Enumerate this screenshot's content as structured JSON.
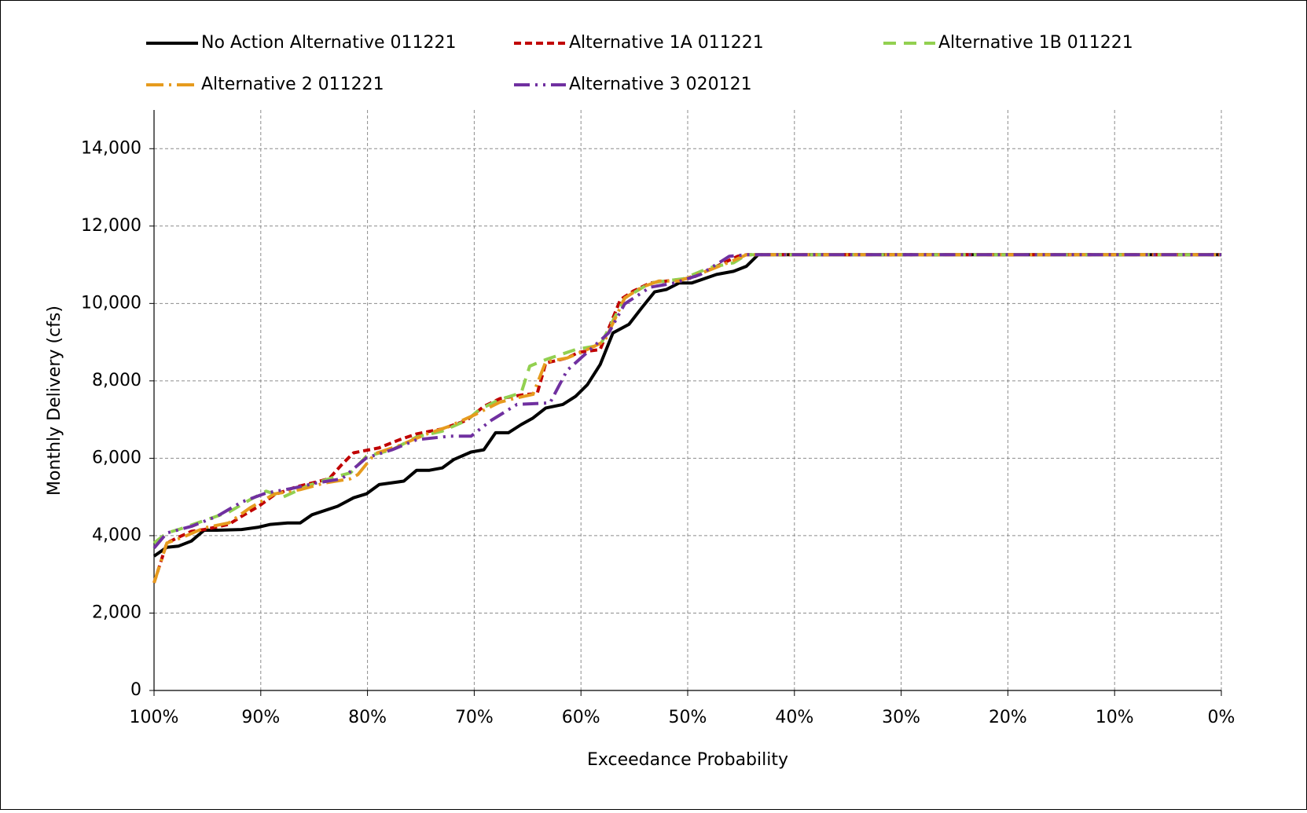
{
  "chart_data": {
    "type": "line",
    "x_label": "Exceedance Probability",
    "y_label": "Monthly Delivery (cfs)",
    "xlim": [
      100,
      0
    ],
    "ylim": [
      0,
      15000
    ],
    "xticks": [
      {
        "value": 100,
        "label": "100%"
      },
      {
        "value": 90,
        "label": "90%"
      },
      {
        "value": 80,
        "label": "80%"
      },
      {
        "value": 70,
        "label": "70%"
      },
      {
        "value": 60,
        "label": "60%"
      },
      {
        "value": 50,
        "label": "50%"
      },
      {
        "value": 40,
        "label": "40%"
      },
      {
        "value": 30,
        "label": "30%"
      },
      {
        "value": 20,
        "label": "20%"
      },
      {
        "value": 10,
        "label": "10%"
      },
      {
        "value": 0,
        "label": "0%"
      }
    ],
    "yticks": [
      0,
      {
        "value": 2000,
        "label": "2,000"
      },
      {
        "value": 4000,
        "label": "4,000"
      },
      {
        "value": 6000,
        "label": "6,000"
      },
      {
        "value": 8000,
        "label": "8,000"
      },
      {
        "value": 10000,
        "label": "10,000"
      },
      {
        "value": 12000,
        "label": "12,000"
      },
      {
        "value": 14000,
        "label": "14,000"
      }
    ],
    "grid": true,
    "legend": "top",
    "series": [
      {
        "name": "No Action Alternative 011221",
        "color": "#000000",
        "line_style": "solid",
        "x": [
          100,
          98.8,
          97.7,
          96.5,
          95.3,
          94.1,
          91.8,
          90.2,
          89.1,
          87.5,
          86.3,
          85.2,
          82.8,
          81.3,
          80.1,
          78.9,
          76.6,
          75.4,
          74.2,
          73.0,
          71.9,
          70.3,
          69.1,
          68.0,
          66.8,
          65.6,
          64.5,
          63.3,
          61.7,
          60.5,
          59.4,
          58.2,
          57.0,
          55.5,
          54.3,
          53.1,
          52.0,
          50.8,
          49.6,
          47.3,
          45.7,
          44.5,
          43.4,
          0
        ],
        "values": [
          3470,
          3700,
          3730,
          3860,
          4140,
          4140,
          4160,
          4220,
          4290,
          4330,
          4330,
          4540,
          4760,
          4980,
          5080,
          5320,
          5410,
          5690,
          5690,
          5750,
          5970,
          6160,
          6220,
          6660,
          6660,
          6870,
          7040,
          7300,
          7390,
          7600,
          7900,
          8420,
          9240,
          9460,
          9890,
          10300,
          10360,
          10530,
          10530,
          10750,
          10830,
          10960,
          11260,
          11260
        ]
      },
      {
        "name": "Alternative 1A 011221",
        "color": "#c00000",
        "line_style": "dashed",
        "x": [
          100,
          98.8,
          97.7,
          96.5,
          95.3,
          93.0,
          91.8,
          90.2,
          88.7,
          86.7,
          85.2,
          83.6,
          82.4,
          81.3,
          78.9,
          77.0,
          75.4,
          73.0,
          70.7,
          69.1,
          67.6,
          65.2,
          64.1,
          63.3,
          61.3,
          60.2,
          58.2,
          56.3,
          55.1,
          53.5,
          52.0,
          49.6,
          47.3,
          45.3,
          44.5,
          0
        ],
        "values": [
          2780,
          3810,
          3960,
          4110,
          4160,
          4290,
          4500,
          4760,
          5060,
          5260,
          5360,
          5470,
          5840,
          6140,
          6270,
          6480,
          6630,
          6760,
          6980,
          7340,
          7540,
          7650,
          7670,
          8460,
          8590,
          8740,
          8810,
          10100,
          10320,
          10530,
          10580,
          10660,
          10960,
          11220,
          11260,
          11260
        ]
      },
      {
        "name": "Alternative 1B 011221",
        "color": "#92d050",
        "line_style": "long-dash",
        "x": [
          100,
          98.8,
          97.7,
          95.3,
          93.0,
          91.0,
          89.5,
          87.9,
          85.5,
          82.8,
          81.6,
          80.1,
          77.7,
          75.4,
          73.0,
          70.7,
          69.5,
          67.6,
          65.6,
          64.8,
          63.3,
          60.5,
          58.2,
          55.9,
          53.5,
          50.4,
          48.0,
          45.7,
          44.5,
          0
        ],
        "values": [
          3810,
          4070,
          4160,
          4390,
          4610,
          4930,
          5150,
          5000,
          5300,
          5540,
          5620,
          6050,
          6220,
          6550,
          6700,
          6980,
          7260,
          7520,
          7690,
          8380,
          8550,
          8810,
          8920,
          10140,
          10530,
          10640,
          10920,
          11050,
          11260,
          11260
        ]
      },
      {
        "name": "Alternative 2 011221",
        "color": "#e69b1e",
        "line_style": "dash-dot",
        "x": [
          100,
          98.8,
          97.3,
          95.3,
          93.0,
          91.0,
          88.7,
          86.3,
          84.0,
          81.6,
          80.9,
          79.3,
          77.0,
          74.6,
          72.3,
          69.9,
          67.6,
          66.0,
          64.5,
          63.3,
          61.3,
          59.4,
          57.8,
          55.9,
          54.3,
          52.7,
          50.8,
          48.0,
          45.7,
          44.5,
          0
        ],
        "values": [
          2780,
          3810,
          3960,
          4200,
          4330,
          4720,
          5080,
          5190,
          5360,
          5470,
          5580,
          6120,
          6330,
          6610,
          6830,
          7130,
          7450,
          7560,
          7650,
          8490,
          8590,
          8810,
          9020,
          10140,
          10420,
          10580,
          10580,
          10860,
          11110,
          11260,
          11260
        ]
      },
      {
        "name": "Alternative 3 020121",
        "color": "#7030a0",
        "line_style": "dash-dot-dot",
        "x": [
          100,
          98.8,
          96.5,
          94.1,
          91.8,
          89.5,
          86.9,
          84.8,
          82.4,
          80.1,
          77.7,
          75.4,
          72.3,
          70.3,
          68.4,
          66.0,
          62.9,
          61.3,
          59.8,
          57.4,
          55.9,
          53.5,
          51.2,
          48.8,
          46.1,
          44.5,
          0
        ],
        "values": [
          3680,
          4070,
          4240,
          4500,
          4870,
          5100,
          5230,
          5360,
          5470,
          6010,
          6220,
          6480,
          6570,
          6570,
          6980,
          7390,
          7430,
          8270,
          8640,
          9240,
          9990,
          10420,
          10530,
          10750,
          11220,
          11260,
          11260
        ]
      }
    ]
  }
}
